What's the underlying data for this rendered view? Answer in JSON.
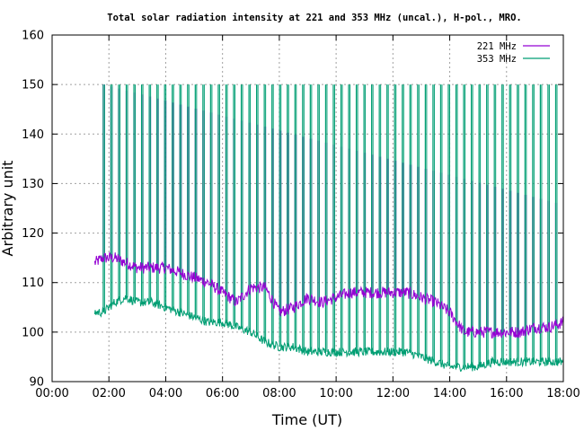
{
  "chart_data": {
    "type": "line",
    "title": "Total solar radiation intensity at 221 and 353 MHz (uncal.), H-pol., MRO.",
    "xlabel": "Time (UT)",
    "ylabel": "Arbitrary unit",
    "xlim": [
      0,
      18
    ],
    "ylim": [
      90,
      160
    ],
    "x_ticks": [
      "00:00",
      "02:00",
      "04:00",
      "06:00",
      "08:00",
      "10:00",
      "12:00",
      "14:00",
      "16:00",
      "18:00"
    ],
    "y_ticks": [
      "90",
      "100",
      "110",
      "120",
      "130",
      "140",
      "150",
      "160"
    ],
    "grid": true,
    "legend_position": "top-right",
    "calibration_spikes": {
      "start_hour": 1.8,
      "interval_hours": 0.27,
      "end_hour": 17.8,
      "spike_221_peak": 150,
      "spike_353_peak": 150
    },
    "series": [
      {
        "name": "221 MHz",
        "color": "#9400d3",
        "x": [
          1.5,
          1.8,
          2.2,
          2.6,
          3.0,
          3.5,
          4.0,
          4.5,
          5.0,
          5.5,
          6.0,
          6.5,
          7.0,
          7.5,
          8.0,
          8.5,
          9.0,
          9.5,
          10.0,
          10.5,
          11.0,
          11.5,
          12.0,
          12.5,
          13.0,
          13.5,
          14.0,
          14.5,
          15.0,
          15.5,
          16.0,
          16.5,
          17.0,
          17.5,
          18.0
        ],
        "y": [
          114,
          115,
          115,
          114,
          113,
          113,
          113,
          112,
          111,
          110,
          108,
          106,
          109,
          109,
          104,
          105,
          107,
          106,
          107,
          108,
          108,
          108,
          108,
          108,
          107,
          106,
          104,
          100,
          100,
          100,
          100,
          100,
          101,
          101,
          102
        ]
      },
      {
        "name": "353 MHz",
        "color": "#009e73",
        "x": [
          1.5,
          1.8,
          2.2,
          2.6,
          3.0,
          3.5,
          4.0,
          4.5,
          5.0,
          5.5,
          6.0,
          6.5,
          7.0,
          7.5,
          8.0,
          8.5,
          9.0,
          9.5,
          10.0,
          10.5,
          11.0,
          11.5,
          12.0,
          12.5,
          13.0,
          13.5,
          14.0,
          14.5,
          15.0,
          15.5,
          16.0,
          16.5,
          17.0,
          17.5,
          18.0
        ],
        "y": [
          104,
          104,
          106,
          107,
          106,
          106,
          105,
          104,
          103,
          102,
          102,
          101,
          100,
          98,
          97,
          97,
          96,
          96,
          96,
          96,
          96,
          96,
          96,
          96,
          95,
          94,
          93,
          93,
          93,
          94,
          94,
          94,
          94,
          94,
          94
        ]
      }
    ]
  }
}
